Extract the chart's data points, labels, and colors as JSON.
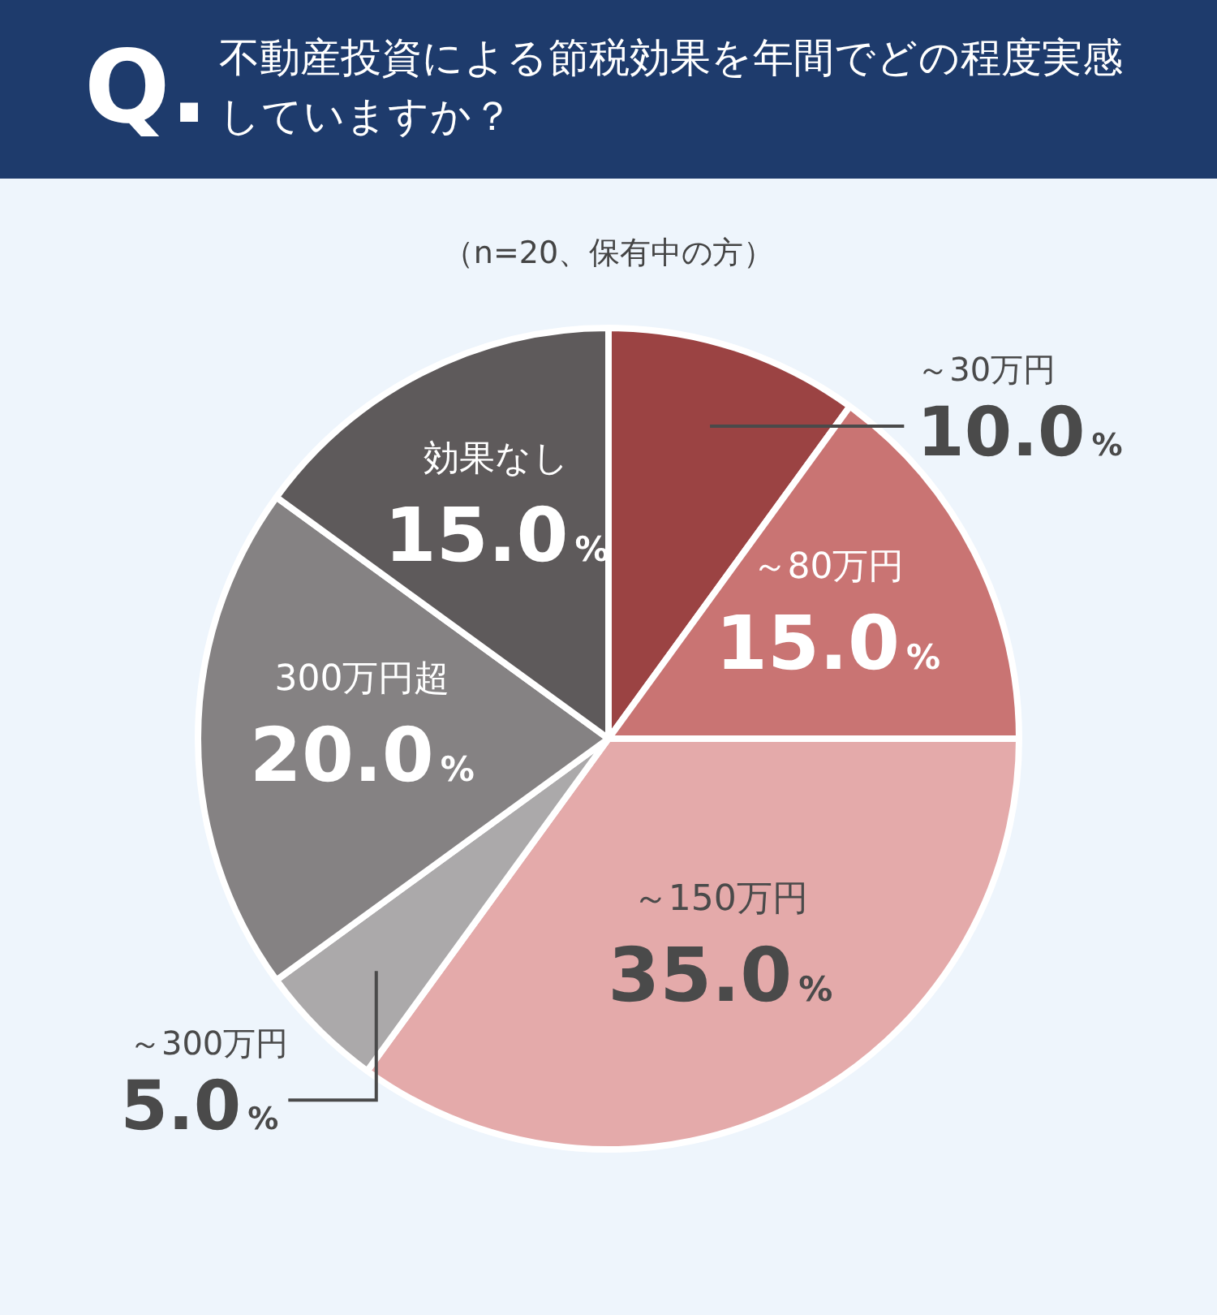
{
  "chart_data": {
    "type": "pie",
    "title": "Q.不動産投資による節税効果を年間でどの程度実感していますか？",
    "subtitle": "（n=20、保有中の方）",
    "categories": [
      "～30万円",
      "～80万円",
      "～150万円",
      "～300万円",
      "300万円超",
      "効果なし"
    ],
    "values": [
      10.0,
      15.0,
      35.0,
      5.0,
      20.0,
      15.0
    ],
    "value_labels": [
      "10.0%",
      "15.0%",
      "35.0%",
      "5.0%",
      "20.0%",
      "15.0%"
    ],
    "colors": [
      "#9b4343",
      "#c97473",
      "#e4aaaa",
      "#aba9aa",
      "#858283",
      "#5e5a5b"
    ],
    "legend": false
  }
}
